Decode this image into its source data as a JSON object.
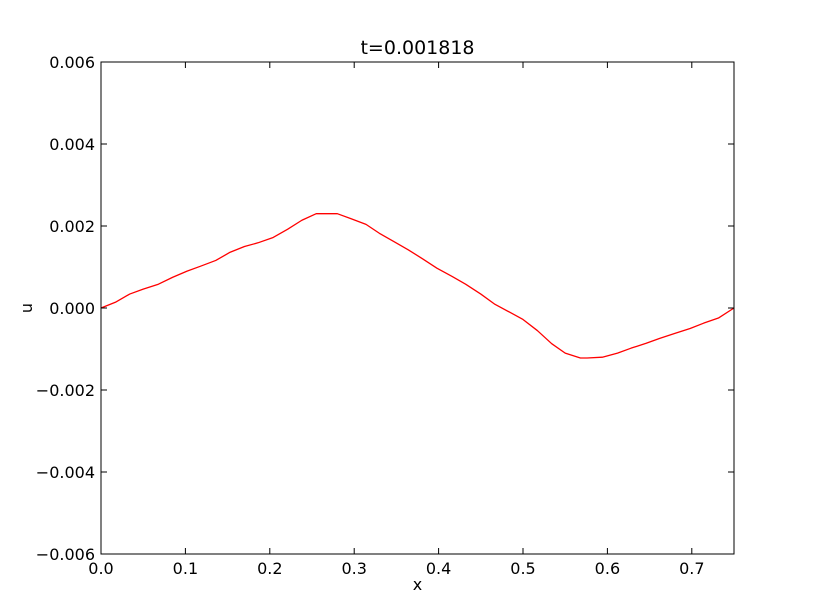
{
  "chart_data": {
    "type": "line",
    "title": "t=0.001818",
    "xlabel": "x",
    "ylabel": "u",
    "xlim": [
      0.0,
      0.75
    ],
    "ylim": [
      -0.006,
      0.006
    ],
    "grid": false,
    "x_ticks": [
      0.0,
      0.1,
      0.2,
      0.3,
      0.4,
      0.5,
      0.6,
      0.7
    ],
    "x_tick_labels": [
      "0.0",
      "0.1",
      "0.2",
      "0.3",
      "0.4",
      "0.5",
      "0.6",
      "0.7"
    ],
    "y_ticks": [
      -0.006,
      -0.004,
      -0.002,
      0.0,
      0.002,
      0.004,
      0.006
    ],
    "y_tick_labels": [
      "−0.006",
      "−0.004",
      "−0.002",
      "0.000",
      "0.002",
      "0.004",
      "0.006"
    ],
    "series": [
      {
        "color": "#ff0000",
        "x": [
          0.0,
          0.017,
          0.034,
          0.05,
          0.068,
          0.085,
          0.102,
          0.118,
          0.136,
          0.153,
          0.17,
          0.186,
          0.204,
          0.221,
          0.238,
          0.255,
          0.262,
          0.28,
          0.296,
          0.314,
          0.33,
          0.347,
          0.364,
          0.381,
          0.398,
          0.416,
          0.432,
          0.45,
          0.466,
          0.484,
          0.5,
          0.517,
          0.534,
          0.55,
          0.568,
          0.576,
          0.594,
          0.612,
          0.628,
          0.646,
          0.662,
          0.68,
          0.698,
          0.714,
          0.732,
          0.75
        ],
        "values": [
          0.0,
          0.00014,
          0.00034,
          0.00046,
          0.00058,
          0.00075,
          0.0009,
          0.00102,
          0.00116,
          0.00136,
          0.0015,
          0.00159,
          0.00172,
          0.00192,
          0.00214,
          0.0023,
          0.0023,
          0.0023,
          0.00218,
          0.00204,
          0.00182,
          0.00162,
          0.00142,
          0.0012,
          0.00097,
          0.00077,
          0.00058,
          0.00034,
          0.0001,
          -0.0001,
          -0.00028,
          -0.00055,
          -0.00087,
          -0.0011,
          -0.00122,
          -0.00122,
          -0.0012,
          -0.0011,
          -0.00098,
          -0.00086,
          -0.00074,
          -0.00062,
          -0.0005,
          -0.00037,
          -0.00024,
          0.0
        ]
      }
    ]
  }
}
